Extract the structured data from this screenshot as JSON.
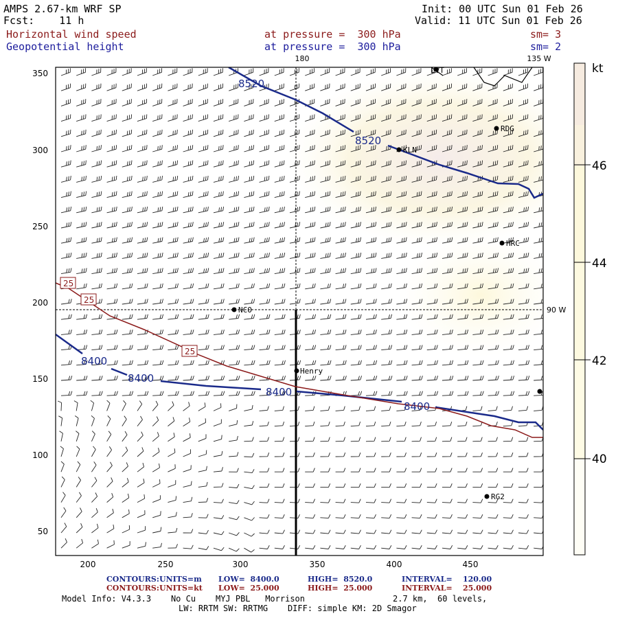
{
  "header": {
    "model_title": "AMPS 2.67-km WRF SP",
    "forecast": "Fcst:    11 h",
    "init": "Init: 00 UTC Sun 01 Feb 26",
    "valid": "Valid: 11 UTC Sun 01 Feb 26",
    "field1_name": "Horizontal wind speed",
    "field1_level": "at pressure =  300 hPa",
    "field1_sm": "sm= 3",
    "field2_name": "Geopotential height",
    "field2_level": "at pressure =  300 hPa",
    "field2_sm": "sm= 2"
  },
  "map": {
    "x_ticks": [
      "200",
      "250",
      "300",
      "350",
      "400",
      "450"
    ],
    "y_ticks": [
      "350",
      "300",
      "250",
      "200",
      "150",
      "100",
      "50"
    ],
    "meridian_top": "180",
    "meridian_top_right": "135 W",
    "meridian_right": "90 W",
    "stations": [
      {
        "id": "RDG",
        "label": "RDG"
      },
      {
        "id": "KLN",
        "label": "KLN"
      },
      {
        "id": "HRC",
        "label": "HRC"
      },
      {
        "id": "NCO",
        "label": "NCO"
      },
      {
        "id": "Henry",
        "label": "Henry"
      },
      {
        "id": "RG2",
        "label": "RG2"
      },
      {
        "id": "LVT",
        "label": "LVT"
      }
    ],
    "height_labels": [
      "8520",
      "8520",
      "8400",
      "8400",
      "8400",
      "8400"
    ],
    "speed_labels": [
      "25",
      "25",
      "25"
    ]
  },
  "colorbar": {
    "unit": "kt",
    "labels": [
      "46",
      "44",
      "42",
      "40"
    ],
    "colors": {
      "high": "#f7ece0",
      "mid": "#fdf8dc",
      "low": "#fefbe6"
    }
  },
  "footer": {
    "line1_label": "CONTOURS:",
    "line1_units": "UNITS=m",
    "line1_low": "LOW=  8400.0",
    "line1_high": "HIGH=  8520.0",
    "line1_interval": "INTERVAL=    120.00",
    "line2_label": "CONTOURS:",
    "line2_units": "UNITS=kt",
    "line2_low": "LOW=  25.000",
    "line2_high": "HIGH=  25.000",
    "line2_interval": "INTERVAL=    25.000",
    "model_info": "Model Info: V4.3.3    No Cu    MYJ PBL   Morrison",
    "grid_info": "2.7 km,  60 levels,",
    "physics": "LW: RRTM SW: RRTMG    DIFF: simple KM: 2D Smagor"
  }
}
